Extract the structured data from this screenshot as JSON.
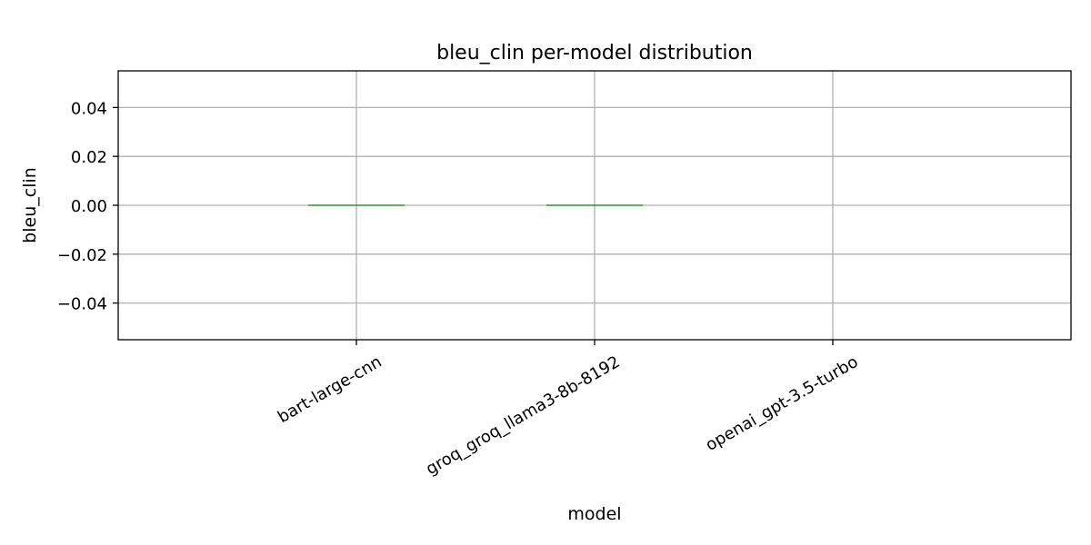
{
  "chart_data": {
    "type": "box",
    "title": "bleu_clin per-model distribution",
    "xlabel": "model",
    "ylabel": "bleu_clin",
    "categories": [
      "bart-large-cnn",
      "groq_groq_llama3-8b-8192",
      "openai_gpt-3.5-turbo"
    ],
    "medians": [
      0.0,
      0.0,
      null
    ],
    "ylim": [
      -0.055,
      0.055
    ],
    "yticks": [
      -0.04,
      -0.02,
      0.0,
      0.02,
      0.04
    ],
    "ytick_labels": [
      "−0.04",
      "−0.02",
      "0.00",
      "0.02",
      "0.04"
    ],
    "grid": true,
    "median_color": "#2ca02c",
    "grid_color": "#b0b0b0"
  }
}
